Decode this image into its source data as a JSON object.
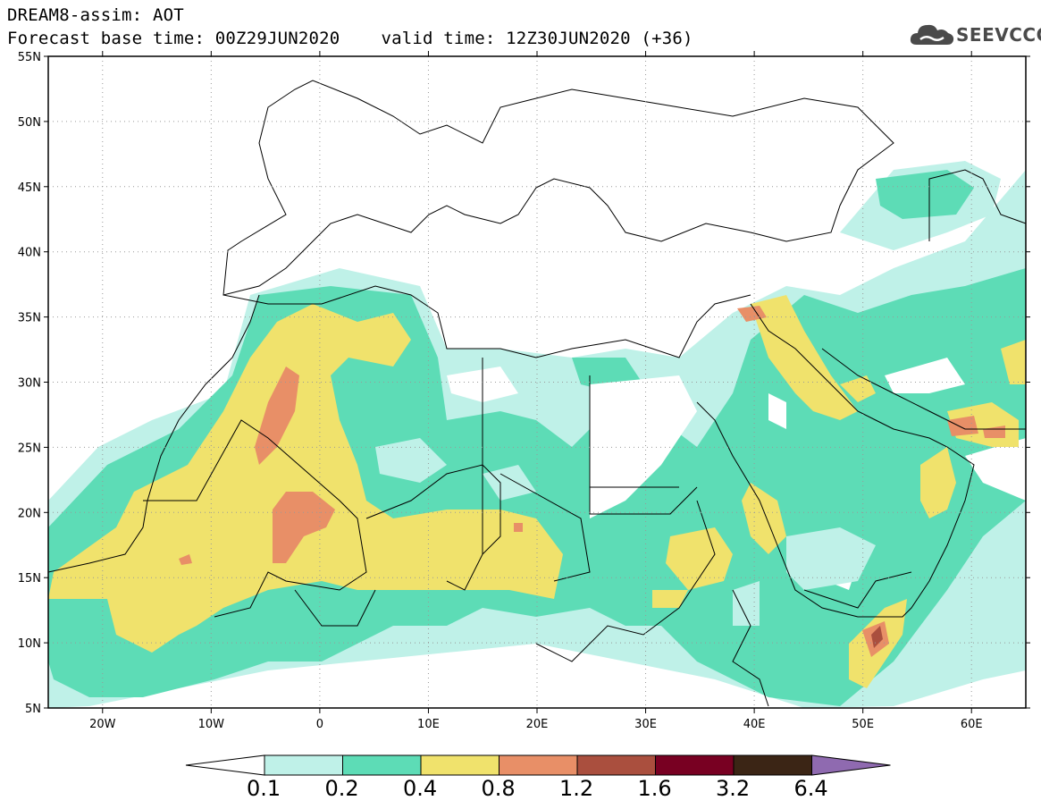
{
  "title": {
    "line1": "DREAM8-assim: AOT",
    "base_time": "Forecast base time: 00Z29JUN2020",
    "valid_time": "valid time: 12Z30JUN2020 (+36)"
  },
  "logo": {
    "text": "SEEVCCC",
    "icon": "cloud-icon"
  },
  "axes": {
    "y_ticks": [
      "55N",
      "50N",
      "45N",
      "40N",
      "35N",
      "30N",
      "25N",
      "20N",
      "15N",
      "10N",
      "5N"
    ],
    "x_ticks": [
      "20W",
      "10W",
      "0",
      "10E",
      "20E",
      "30E",
      "40E",
      "50E",
      "60E"
    ],
    "lon_range": [
      -25,
      65
    ],
    "lat_range": [
      5,
      55
    ]
  },
  "colorbar": {
    "labels": [
      "0.1",
      "0.2",
      "0.4",
      "0.8",
      "1.2",
      "1.6",
      "3.2",
      "6.4"
    ],
    "colors": [
      "#ffffff",
      "#bff1e8",
      "#5ddcb6",
      "#f0e26c",
      "#e88f67",
      "#aa4f3e",
      "#780022",
      "#3b2515",
      "#8f6ab0"
    ]
  }
}
